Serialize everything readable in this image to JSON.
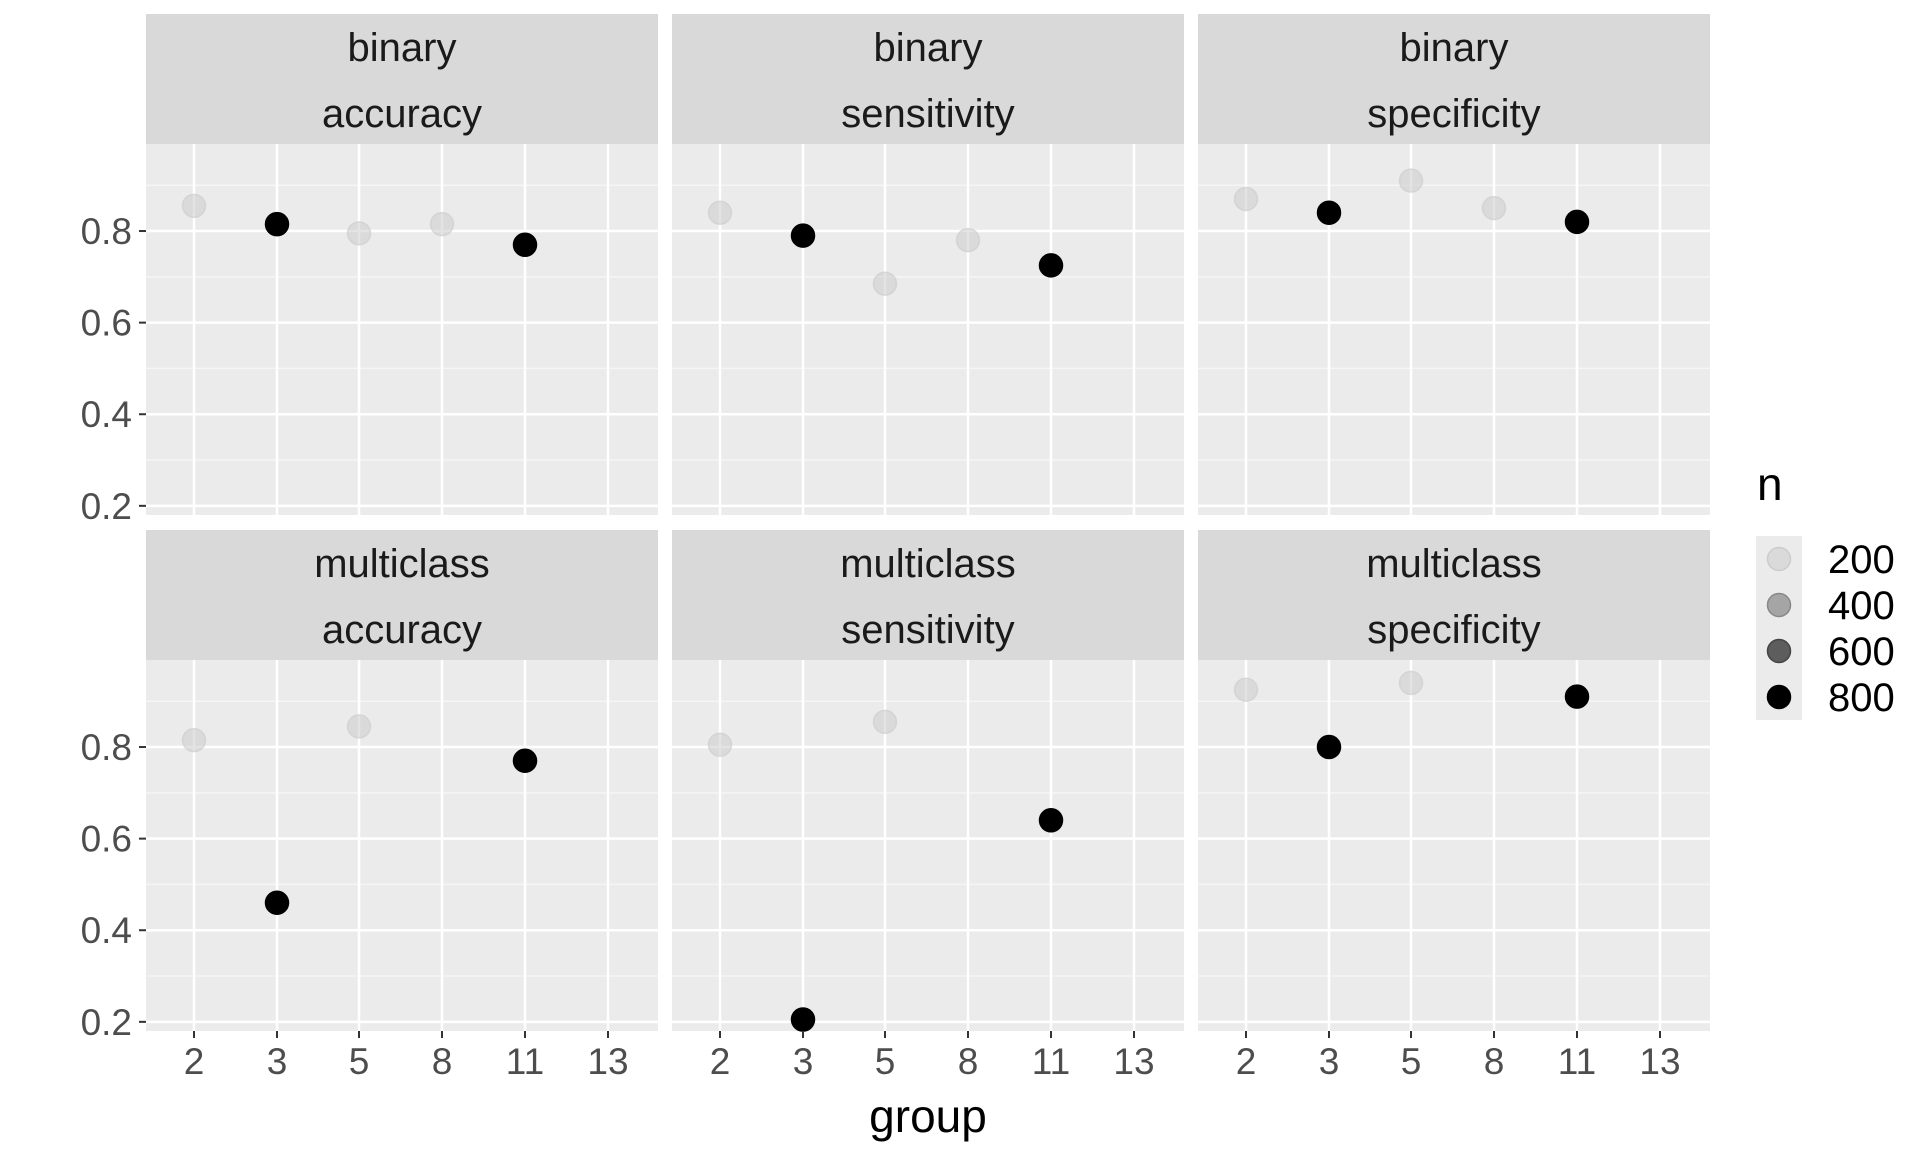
{
  "chart_data": {
    "type": "scatter",
    "facet_rows": [
      "binary",
      "multiclass"
    ],
    "facet_cols": [
      "accuracy",
      "sensitivity",
      "specificity"
    ],
    "x_categories": [
      "2",
      "3",
      "5",
      "8",
      "11",
      "13"
    ],
    "y_ticks": [
      "0.2",
      "0.4",
      "0.6",
      "0.8"
    ],
    "ylim": [
      0.18,
      0.99
    ],
    "xlabel": "group",
    "ylabel": "",
    "grid": true,
    "legend": {
      "title": "n",
      "position": "right",
      "levels": [
        200,
        400,
        600,
        800
      ],
      "labels": [
        "200",
        "400",
        "600",
        "800"
      ]
    },
    "panels": [
      {
        "row": "binary",
        "col": "accuracy",
        "points": [
          {
            "group": "2",
            "value": 0.855,
            "n": 200
          },
          {
            "group": "3",
            "value": 0.815,
            "n": 800
          },
          {
            "group": "5",
            "value": 0.795,
            "n": 200
          },
          {
            "group": "8",
            "value": 0.815,
            "n": 200
          },
          {
            "group": "11",
            "value": 0.77,
            "n": 800
          }
        ]
      },
      {
        "row": "binary",
        "col": "sensitivity",
        "points": [
          {
            "group": "2",
            "value": 0.84,
            "n": 200
          },
          {
            "group": "3",
            "value": 0.79,
            "n": 800
          },
          {
            "group": "5",
            "value": 0.685,
            "n": 200
          },
          {
            "group": "8",
            "value": 0.78,
            "n": 200
          },
          {
            "group": "11",
            "value": 0.725,
            "n": 800
          }
        ]
      },
      {
        "row": "binary",
        "col": "specificity",
        "points": [
          {
            "group": "2",
            "value": 0.87,
            "n": 200
          },
          {
            "group": "3",
            "value": 0.84,
            "n": 800
          },
          {
            "group": "5",
            "value": 0.91,
            "n": 200
          },
          {
            "group": "8",
            "value": 0.85,
            "n": 200
          },
          {
            "group": "11",
            "value": 0.82,
            "n": 800
          }
        ]
      },
      {
        "row": "multiclass",
        "col": "accuracy",
        "points": [
          {
            "group": "2",
            "value": 0.815,
            "n": 200
          },
          {
            "group": "3",
            "value": 0.46,
            "n": 800
          },
          {
            "group": "5",
            "value": 0.845,
            "n": 200
          },
          {
            "group": "11",
            "value": 0.77,
            "n": 800
          }
        ]
      },
      {
        "row": "multiclass",
        "col": "sensitivity",
        "points": [
          {
            "group": "2",
            "value": 0.805,
            "n": 200
          },
          {
            "group": "3",
            "value": 0.205,
            "n": 800
          },
          {
            "group": "5",
            "value": 0.855,
            "n": 200
          },
          {
            "group": "11",
            "value": 0.64,
            "n": 800
          }
        ]
      },
      {
        "row": "multiclass",
        "col": "specificity",
        "points": [
          {
            "group": "2",
            "value": 0.925,
            "n": 200
          },
          {
            "group": "3",
            "value": 0.8,
            "n": 800
          },
          {
            "group": "5",
            "value": 0.94,
            "n": 200
          },
          {
            "group": "11",
            "value": 0.91,
            "n": 800
          }
        ]
      }
    ],
    "colors": {
      "panel_background": "#ebebeb",
      "strip_background": "#d9d9d9",
      "grid_major": "#ffffff",
      "grid_minor": "#f5f5f5",
      "text": "#1a1a1a",
      "axis_text": "#4d4d4d",
      "point_light": "#cccccc",
      "point_dark": "#000000"
    }
  }
}
